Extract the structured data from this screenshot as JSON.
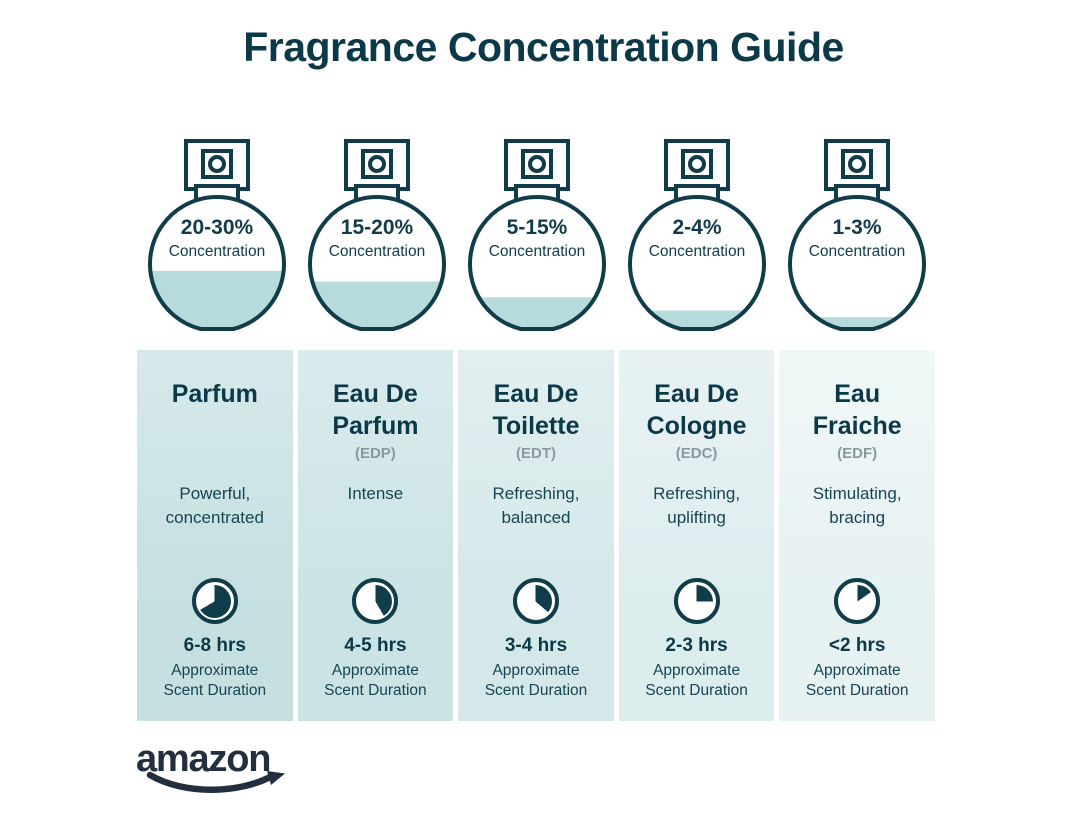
{
  "page": {
    "title": "Fragrance Concentration Guide",
    "brand": "amazon"
  },
  "colors": {
    "ink": "#0c3947",
    "outline": "#113c49",
    "liquid_fill": "#b7dbdd",
    "abbr_gray": "#8a999e",
    "brand_navy": "#232f3e"
  },
  "bottles": [
    {
      "percent": "20-30%",
      "label": "Concentration",
      "fill_percent": 44
    },
    {
      "percent": "15-20%",
      "label": "Concentration",
      "fill_percent": 36
    },
    {
      "percent": "5-15%",
      "label": "Concentration",
      "fill_percent": 24
    },
    {
      "percent": "2-4%",
      "label": "Concentration",
      "fill_percent": 14
    },
    {
      "percent": "1-3%",
      "label": "Concentration",
      "fill_percent": 9
    }
  ],
  "columns": [
    {
      "name": "Parfum",
      "abbr": "",
      "description": "Powerful,\nconcentrated",
      "duration": "6-8 hrs",
      "duration_note": "Approximate\nScent Duration",
      "clock_degrees": 240,
      "bg_top": "#d6e9ea",
      "bg_bottom": "#c6dfe1"
    },
    {
      "name": "Eau De\nParfum",
      "abbr": "(EDP)",
      "description": "Intense",
      "duration": "4-5 hrs",
      "duration_note": "Approximate\nScent Duration",
      "clock_degrees": 150,
      "bg_top": "#daebec",
      "bg_bottom": "#cbe3e5"
    },
    {
      "name": "Eau De\nToilette",
      "abbr": "(EDT)",
      "description": "Refreshing,\nbalanced",
      "duration": "3-4 hrs",
      "duration_note": "Approximate\nScent Duration",
      "clock_degrees": 130,
      "bg_top": "#e1eff0",
      "bg_bottom": "#d4e8e9"
    },
    {
      "name": "Eau De\nCologne",
      "abbr": "(EDC)",
      "description": "Refreshing,\nuplifting",
      "duration": "2-3 hrs",
      "duration_note": "Approximate\nScent Duration",
      "clock_degrees": 90,
      "bg_top": "#e8f2f3",
      "bg_bottom": "#dcedee"
    },
    {
      "name": "Eau\nFraiche",
      "abbr": "(EDF)",
      "description": "Stimulating,\nbracing",
      "duration": "<2 hrs",
      "duration_note": "Approximate\nScent Duration",
      "clock_degrees": 55,
      "bg_top": "#f0f7f7",
      "bg_bottom": "#e6f1f2"
    }
  ]
}
